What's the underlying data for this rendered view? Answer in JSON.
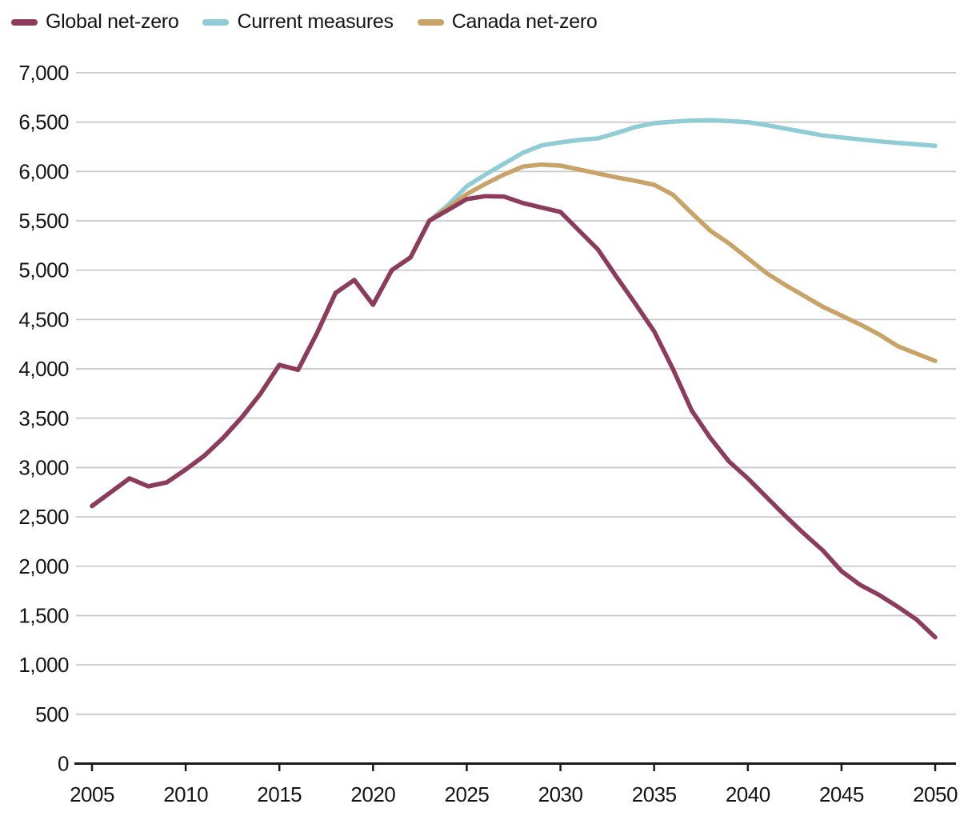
{
  "chart_data": {
    "type": "line",
    "x": [
      2005,
      2006,
      2007,
      2008,
      2009,
      2010,
      2011,
      2012,
      2013,
      2014,
      2015,
      2016,
      2017,
      2018,
      2019,
      2020,
      2021,
      2022,
      2023,
      2024,
      2025,
      2026,
      2027,
      2028,
      2029,
      2030,
      2031,
      2032,
      2033,
      2034,
      2035,
      2036,
      2037,
      2038,
      2039,
      2040,
      2041,
      2042,
      2043,
      2044,
      2045,
      2046,
      2047,
      2048,
      2049,
      2050
    ],
    "series": [
      {
        "id": "global-net-zero",
        "name": "Global net-zero",
        "color": "#8c3b5c",
        "values": [
          2610,
          2750,
          2890,
          2810,
          2850,
          2980,
          3120,
          3300,
          3510,
          3750,
          4040,
          3990,
          4360,
          4770,
          4900,
          4650,
          5000,
          5130,
          5500,
          5610,
          5720,
          5750,
          5745,
          5680,
          5635,
          5590,
          5400,
          5210,
          4930,
          4660,
          4380,
          4000,
          3580,
          3300,
          3060,
          2890,
          2700,
          2510,
          2330,
          2160,
          1950,
          1810,
          1710,
          1590,
          1460,
          1280
        ]
      },
      {
        "id": "current-measures",
        "name": "Current measures",
        "color": "#8fccd5",
        "values": [
          2610,
          2750,
          2890,
          2810,
          2850,
          2980,
          3120,
          3300,
          3510,
          3750,
          4040,
          3990,
          4360,
          4770,
          4900,
          4650,
          5000,
          5130,
          5500,
          5660,
          5850,
          5970,
          6080,
          6190,
          6265,
          6295,
          6320,
          6335,
          6390,
          6450,
          6490,
          6505,
          6515,
          6520,
          6510,
          6500,
          6470,
          6435,
          6400,
          6365,
          6345,
          6325,
          6305,
          6290,
          6275,
          6260
        ]
      },
      {
        "id": "canada-net-zero",
        "name": "Canada net-zero",
        "color": "#c8a267",
        "values": [
          2610,
          2750,
          2890,
          2810,
          2850,
          2980,
          3120,
          3300,
          3510,
          3750,
          4040,
          3990,
          4360,
          4770,
          4900,
          4650,
          5000,
          5130,
          5500,
          5635,
          5770,
          5875,
          5970,
          6050,
          6070,
          6060,
          6020,
          5980,
          5940,
          5905,
          5865,
          5765,
          5580,
          5400,
          5270,
          5120,
          4970,
          4850,
          4740,
          4630,
          4540,
          4450,
          4350,
          4230,
          4155,
          4080
        ]
      }
    ],
    "draw_order": [
      1,
      2,
      0
    ],
    "xticks": [
      2005,
      2010,
      2015,
      2020,
      2025,
      2030,
      2035,
      2040,
      2045,
      2050
    ],
    "xtick_labels": [
      "2005",
      "2010",
      "2015",
      "2020",
      "2025",
      "2030",
      "2035",
      "2040",
      "2045",
      "2050"
    ],
    "yticks": [
      0,
      500,
      1000,
      1500,
      2000,
      2500,
      3000,
      3500,
      4000,
      4500,
      5000,
      5500,
      6000,
      6500,
      7000
    ],
    "ytick_labels": [
      "0",
      "500",
      "1,000",
      "1,500",
      "2,000",
      "2,500",
      "3,000",
      "3,500",
      "4,000",
      "4,500",
      "5,000",
      "5,500",
      "6,000",
      "6,500",
      "7,000"
    ],
    "xlim": [
      2005,
      2050
    ],
    "ylim": [
      0,
      7000
    ],
    "grid": true,
    "legend_position": "top-left",
    "title": "",
    "xlabel": "",
    "ylabel": ""
  },
  "style": {
    "grid_color": "#c9c9c9",
    "axis_color": "#1a1a1a",
    "text_color": "#141414",
    "background": "#ffffff"
  }
}
